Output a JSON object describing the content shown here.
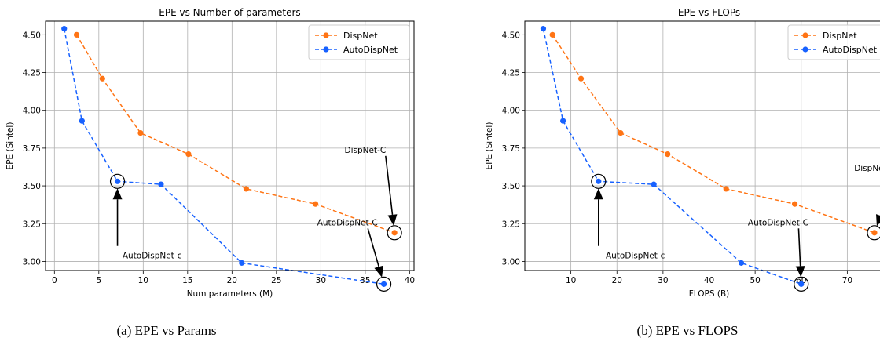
{
  "captions": [
    "(a) EPE vs Params",
    "(b) EPE vs FLOPS"
  ],
  "colors": {
    "dispnet": "#ff7414",
    "autodispnet": "#1761ff",
    "grid": "#b0b0b0"
  },
  "chart_data": [
    {
      "type": "line",
      "title": "EPE vs Number of parameters",
      "xlabel": "Num parameters (M)",
      "ylabel": "EPE (Sintel)",
      "xlim": [
        -1,
        40.5
      ],
      "ylim": [
        2.94,
        4.59
      ],
      "xticks": [
        0,
        5,
        10,
        15,
        20,
        25,
        30,
        35,
        40
      ],
      "yticks": [
        3.0,
        3.25,
        3.5,
        3.75,
        4.0,
        4.25,
        4.5
      ],
      "ytick_labels": [
        "3.00",
        "3.25",
        "3.50",
        "3.75",
        "4.00",
        "4.25",
        "4.50"
      ],
      "grid": true,
      "legend": "top-right",
      "series": [
        {
          "name": "DispNet",
          "x": [
            2.5,
            5.4,
            9.7,
            15.1,
            21.6,
            29.4,
            38.3
          ],
          "y": [
            4.5,
            4.21,
            3.85,
            3.71,
            3.48,
            3.38,
            3.19
          ]
        },
        {
          "name": "AutoDispNet",
          "x": [
            1.1,
            3.1,
            7.1,
            12.0,
            21.1,
            37.1
          ],
          "y": [
            4.54,
            3.93,
            3.53,
            3.51,
            2.99,
            2.85
          ]
        }
      ],
      "annotations": [
        {
          "text": "DispNet-C",
          "x": 38.3,
          "y": 3.19,
          "text_x": 35.0,
          "text_y": 3.74
        },
        {
          "text": "AutoDispNet-C",
          "x": 37.1,
          "y": 2.85,
          "text_x": 33.0,
          "text_y": 3.26
        },
        {
          "text": "AutoDispNet-c",
          "x": 7.1,
          "y": 3.53,
          "text_x": 11.0,
          "text_y": 3.04
        }
      ]
    },
    {
      "type": "line",
      "title": "EPE vs FLOPs",
      "xlabel": "FLOPS (B)",
      "ylabel": "EPE (Sintel)",
      "xlim": [
        0,
        80
      ],
      "ylim": [
        2.94,
        4.59
      ],
      "xticks": [
        10,
        20,
        30,
        40,
        50,
        60,
        70
      ],
      "yticks": [
        3.0,
        3.25,
        3.5,
        3.75,
        4.0,
        4.25,
        4.5
      ],
      "ytick_labels": [
        "3.00",
        "3.25",
        "3.50",
        "3.75",
        "4.00",
        "4.25",
        "4.50"
      ],
      "grid": true,
      "legend": "top-right",
      "series": [
        {
          "name": "DispNet",
          "x": [
            6.0,
            12.2,
            20.8,
            31.0,
            43.7,
            58.6,
            75.9
          ],
          "y": [
            4.5,
            4.21,
            3.85,
            3.71,
            3.48,
            3.38,
            3.19
          ]
        },
        {
          "name": "AutoDispNet",
          "x": [
            4.0,
            8.3,
            16.0,
            28.0,
            47.0,
            60.0
          ],
          "y": [
            4.54,
            3.93,
            3.53,
            3.51,
            2.99,
            2.85
          ]
        }
      ],
      "annotations": [
        {
          "text": "DispNet-C",
          "x": 75.9,
          "y": 3.19,
          "text_x": 76.0,
          "text_y": 3.62
        },
        {
          "text": "AutoDispNet-C",
          "x": 60.0,
          "y": 2.85,
          "text_x": 55.0,
          "text_y": 3.26
        },
        {
          "text": "AutoDispNet-c",
          "x": 16.0,
          "y": 3.53,
          "text_x": 24.0,
          "text_y": 3.04
        }
      ]
    }
  ]
}
